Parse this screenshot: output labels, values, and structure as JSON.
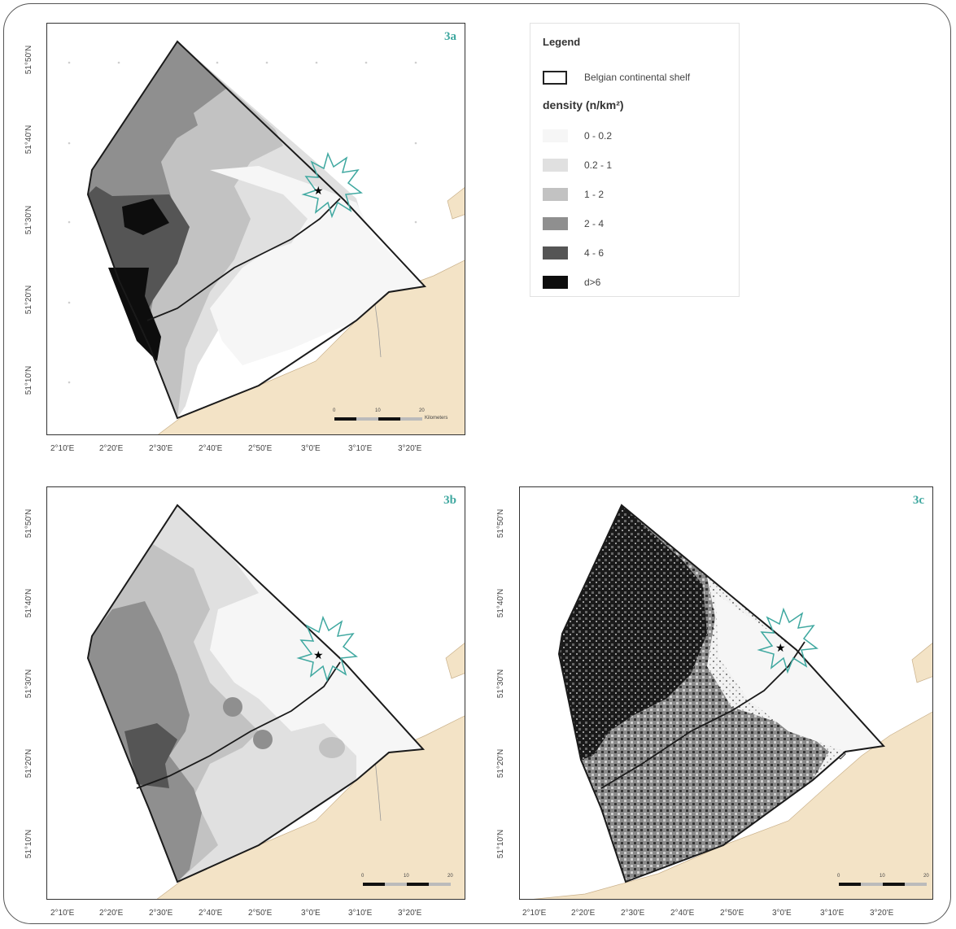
{
  "maps": [
    {
      "id": "3a",
      "label": "3a"
    },
    {
      "id": "3b",
      "label": "3b"
    },
    {
      "id": "3c",
      "label": "3c"
    }
  ],
  "x_ticks": [
    "2°10'E",
    "2°20'E",
    "2°30'E",
    "2°40'E",
    "2°50'E",
    "3°0'E",
    "3°10'E",
    "3°20'E"
  ],
  "y_ticks": [
    "51°50'N",
    "51°40'N",
    "51°30'N",
    "51°20'N",
    "51°10'N"
  ],
  "scale_bar": {
    "values": [
      "0",
      "10",
      "20"
    ],
    "unit": "Kilometers"
  },
  "legend": {
    "title": "Legend",
    "shelf_label": "Belgian continental shelf",
    "density_title": "density (n/km²)",
    "classes": [
      {
        "label": "0 - 0.2",
        "color": "#f6f6f6"
      },
      {
        "label": "0.2 - 1",
        "color": "#e0e0e0"
      },
      {
        "label": "1 - 2",
        "color": "#c2c2c2"
      },
      {
        "label": "2 - 4",
        "color": "#8f8f8f"
      },
      {
        "label": "4 - 6",
        "color": "#555555"
      },
      {
        "label": "d>6",
        "color": "#0d0d0d"
      }
    ]
  },
  "colors": {
    "land": "#f3e3c6",
    "label_accent": "#3fa8a0",
    "star_outline": "#3fa8a0",
    "boundary": "#1a1a1a"
  }
}
